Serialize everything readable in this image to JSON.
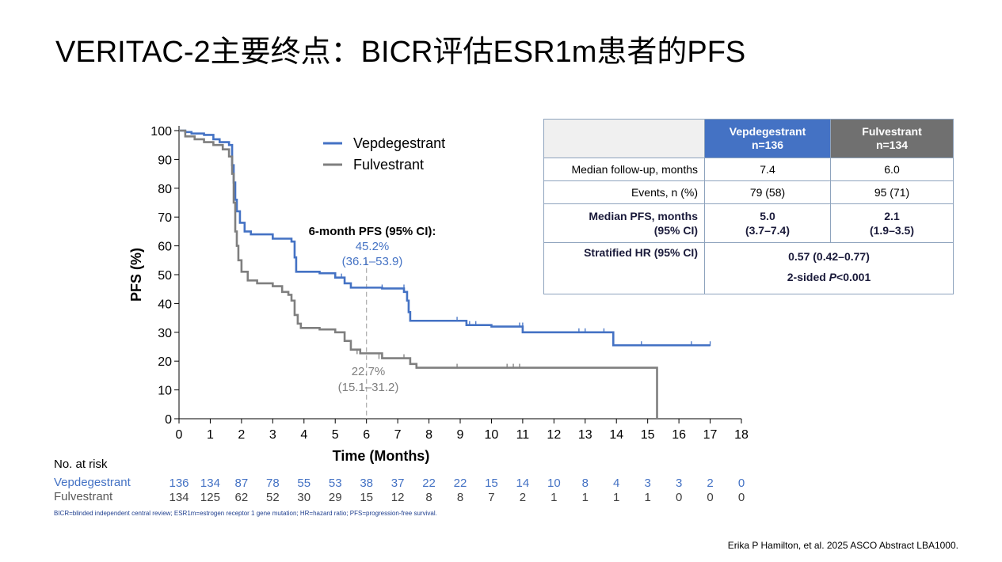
{
  "slide": {
    "title": "VERITAC-2主要终点：BICR评估ESR1m患者的PFS",
    "citation": "Erika P Hamilton, et al. 2025 ASCO Abstract LBA1000.",
    "footnote": "BICR=blinded independent central review; ESR1m=estrogen receptor 1 gene mutation; HR=hazard ratio; PFS=progression-free survival."
  },
  "chart_data": {
    "type": "line",
    "subtype": "kaplan-meier step",
    "xlabel": "Time (Months)",
    "ylabel": "PFS (%)",
    "xlim": [
      0,
      18
    ],
    "ylim": [
      0,
      100
    ],
    "xticks": [
      0,
      1,
      2,
      3,
      4,
      5,
      6,
      7,
      8,
      9,
      10,
      11,
      12,
      13,
      14,
      15,
      16,
      17,
      18
    ],
    "yticks": [
      0,
      10,
      20,
      30,
      40,
      50,
      60,
      70,
      80,
      90,
      100
    ],
    "grid": false,
    "legend_position": "top-center",
    "colors": {
      "vep": "#4472c4",
      "ful": "#7f7f7f",
      "vep_text": "#4472c4",
      "ful_text": "#7f7f7f"
    },
    "series": [
      {
        "name": "Vepdegestrant",
        "points": [
          [
            0,
            100
          ],
          [
            0.2,
            99.5
          ],
          [
            0.4,
            99
          ],
          [
            0.8,
            98.5
          ],
          [
            1.1,
            97
          ],
          [
            1.3,
            96
          ],
          [
            1.6,
            95
          ],
          [
            1.7,
            88
          ],
          [
            1.75,
            82
          ],
          [
            1.8,
            76
          ],
          [
            1.85,
            72
          ],
          [
            1.95,
            68
          ],
          [
            2.1,
            65
          ],
          [
            2.3,
            64
          ],
          [
            3.0,
            62.5
          ],
          [
            3.6,
            61.5
          ],
          [
            3.7,
            56
          ],
          [
            3.75,
            51
          ],
          [
            4.5,
            50.5
          ],
          [
            5.0,
            49
          ],
          [
            5.3,
            47
          ],
          [
            5.5,
            45.5
          ],
          [
            6.5,
            45.2
          ],
          [
            7.2,
            44
          ],
          [
            7.3,
            41
          ],
          [
            7.35,
            37
          ],
          [
            7.4,
            34
          ],
          [
            8.5,
            34
          ],
          [
            9.2,
            32.5
          ],
          [
            10,
            32
          ],
          [
            11,
            30
          ],
          [
            12,
            30
          ],
          [
            13.9,
            25.5
          ],
          [
            17,
            25.5
          ]
        ],
        "censors": [
          [
            5.2,
            49
          ],
          [
            6.5,
            45.2
          ],
          [
            7.2,
            45.2
          ],
          [
            8.9,
            34
          ],
          [
            9.3,
            32.5
          ],
          [
            9.5,
            32.5
          ],
          [
            10.9,
            32
          ],
          [
            11,
            32
          ],
          [
            12.8,
            30
          ],
          [
            13,
            30
          ],
          [
            13.6,
            30
          ],
          [
            14.8,
            25.5
          ],
          [
            16.4,
            25.5
          ],
          [
            17,
            25.5
          ]
        ]
      },
      {
        "name": "Fulvestrant",
        "points": [
          [
            0,
            100
          ],
          [
            0.2,
            98
          ],
          [
            0.5,
            97
          ],
          [
            0.8,
            96
          ],
          [
            1.1,
            95
          ],
          [
            1.4,
            93.5
          ],
          [
            1.6,
            91
          ],
          [
            1.7,
            85
          ],
          [
            1.75,
            75
          ],
          [
            1.8,
            65
          ],
          [
            1.85,
            60
          ],
          [
            1.9,
            55
          ],
          [
            2.0,
            51
          ],
          [
            2.2,
            48
          ],
          [
            2.5,
            47
          ],
          [
            3.0,
            46
          ],
          [
            3.3,
            44
          ],
          [
            3.5,
            43
          ],
          [
            3.6,
            41
          ],
          [
            3.7,
            36
          ],
          [
            3.8,
            33
          ],
          [
            3.9,
            31.5
          ],
          [
            4.5,
            31
          ],
          [
            5.0,
            30
          ],
          [
            5.3,
            27
          ],
          [
            5.5,
            24
          ],
          [
            5.8,
            22.7
          ],
          [
            6.5,
            21
          ],
          [
            7.4,
            19
          ],
          [
            7.6,
            17.7
          ],
          [
            15.3,
            17.7
          ],
          [
            15.3,
            0
          ]
        ],
        "censors": [
          [
            5.7,
            22.7
          ],
          [
            6.4,
            21
          ],
          [
            7.2,
            21
          ],
          [
            7.6,
            17.7
          ],
          [
            8.9,
            17.7
          ],
          [
            10.5,
            17.7
          ],
          [
            10.7,
            17.7
          ],
          [
            10.9,
            17.7
          ]
        ]
      }
    ],
    "annotations": {
      "header": "6-month PFS (95% CI):",
      "vep_value": "45.2%",
      "vep_ci": "(36.1–53.9)",
      "ful_value": "22.7%",
      "ful_ci": "(15.1–31.2)",
      "reference_x": 6
    },
    "risk_table": {
      "title": "No. at risk",
      "times": [
        0,
        1,
        2,
        3,
        4,
        5,
        6,
        7,
        8,
        9,
        10,
        11,
        12,
        13,
        14,
        15,
        16,
        17,
        18
      ],
      "rows": [
        {
          "name": "Vepdegestrant",
          "values": [
            136,
            134,
            87,
            78,
            55,
            53,
            38,
            37,
            22,
            22,
            15,
            14,
            10,
            8,
            4,
            3,
            3,
            2,
            0
          ]
        },
        {
          "name": "Fulvestrant",
          "values": [
            134,
            125,
            62,
            52,
            30,
            29,
            15,
            12,
            8,
            8,
            7,
            2,
            1,
            1,
            1,
            1,
            0,
            0,
            0
          ]
        }
      ]
    }
  },
  "table": {
    "col1": "Vepdegestrant",
    "col1_n": "n=136",
    "col2": "Fulvestrant",
    "col2_n": "n=134",
    "rows": [
      {
        "label": "Median follow-up, months",
        "v1": "7.4",
        "v2": "6.0"
      },
      {
        "label": "Events, n (%)",
        "v1": "79 (58)",
        "v2": "95 (71)"
      },
      {
        "label": "Median PFS, months",
        "label2": "(95% CI)",
        "v1": "5.0",
        "v1b": "(3.7–7.4)",
        "v2": "2.1",
        "v2b": "(1.9–3.5)"
      }
    ],
    "hr_label": "Stratified HR (95% CI)",
    "hr_value": "0.57 (0.42–0.77)",
    "p_prefix": "2-sided ",
    "p_italic": "P",
    "p_suffix": "<0.001"
  }
}
